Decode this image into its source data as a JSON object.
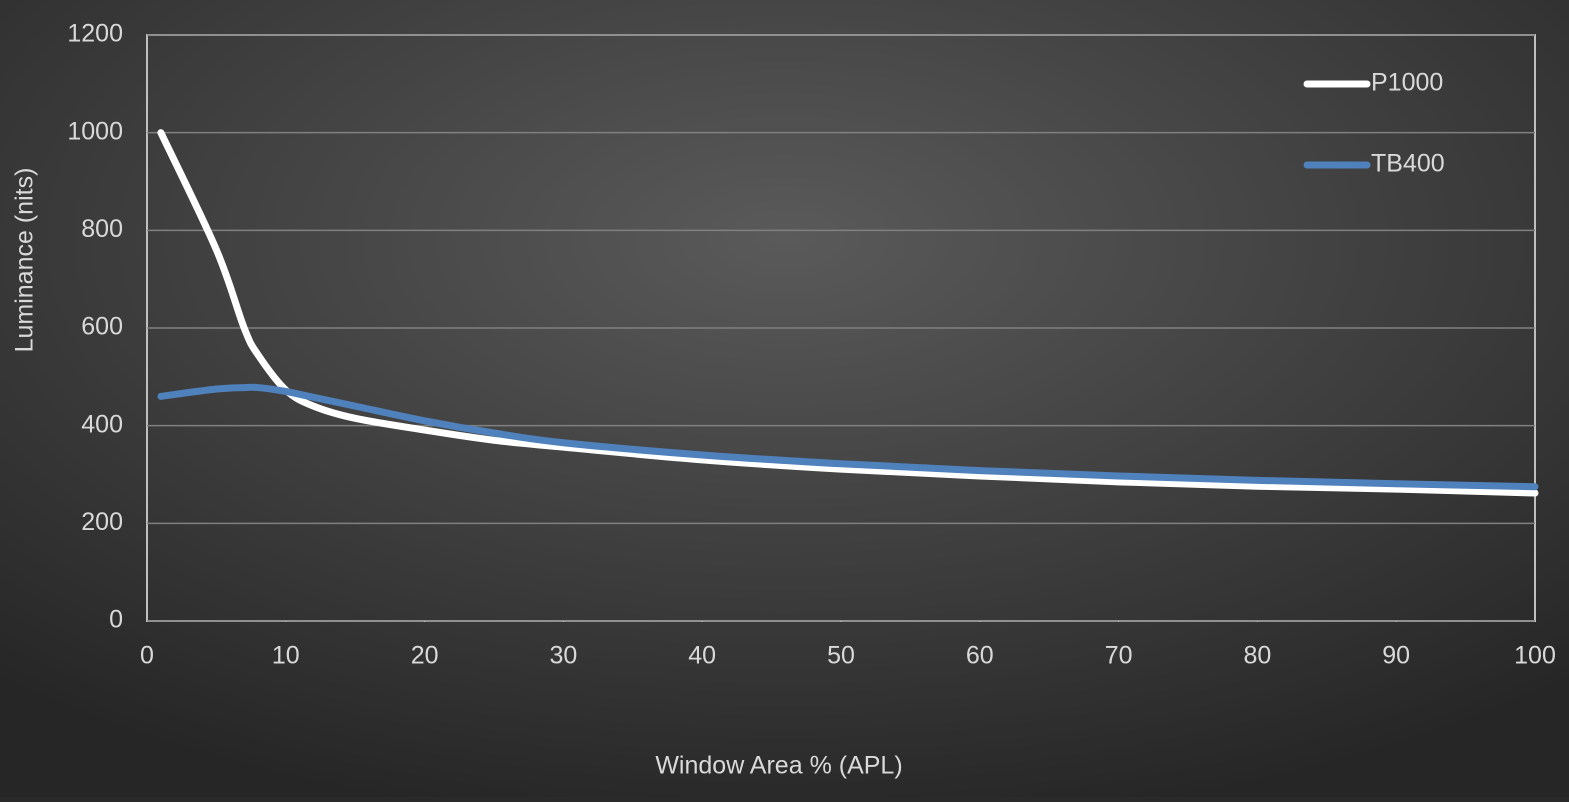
{
  "chart_data": {
    "type": "line",
    "x_label": "Window Area % (APL)",
    "y_label": "Luminance (nits)",
    "x": [
      1,
      5,
      7,
      8,
      10,
      12,
      15,
      20,
      25,
      30,
      40,
      50,
      60,
      70,
      80,
      90,
      100
    ],
    "series": [
      {
        "name": "P1000",
        "color": "#ffffff",
        "values": [
          1000,
          760,
          600,
          545,
          473,
          440,
          415,
          391,
          370,
          356,
          330,
          311,
          297,
          285,
          276,
          270,
          262
        ]
      },
      {
        "name": "TB400",
        "color": "#4f81bd",
        "values": [
          460,
          475,
          478,
          478,
          470,
          458,
          440,
          410,
          385,
          365,
          340,
          322,
          308,
          297,
          288,
          281,
          275
        ]
      }
    ],
    "xlim": [
      0,
      100
    ],
    "xticks": [
      0,
      10,
      20,
      30,
      40,
      50,
      60,
      70,
      80,
      90,
      100
    ],
    "ylim": [
      0,
      1200
    ],
    "yticks": [
      0,
      200,
      400,
      600,
      800,
      1000,
      1200
    ],
    "grid": true,
    "legend": "upper right"
  }
}
